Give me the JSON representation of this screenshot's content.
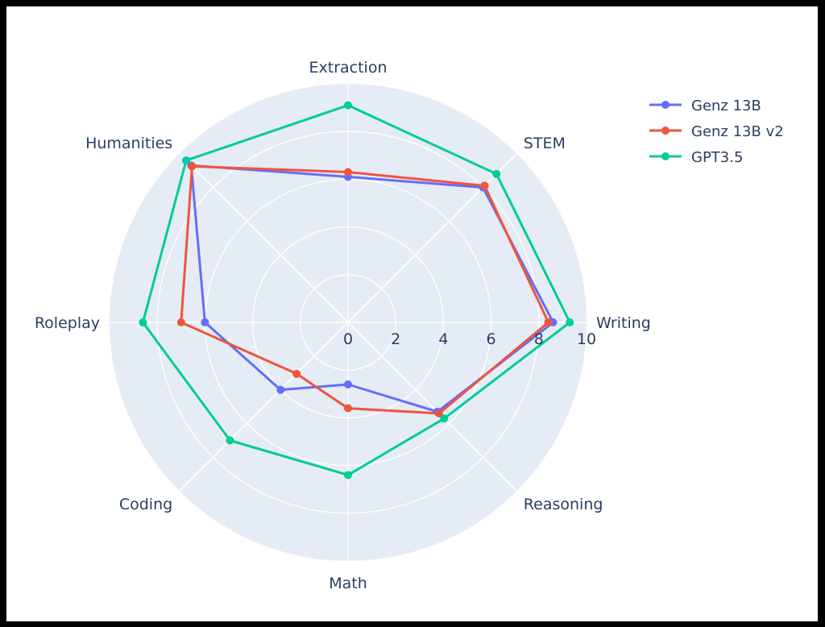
{
  "chart_data": {
    "type": "radar",
    "categories": [
      "Writing",
      "STEM",
      "Extraction",
      "Humanities",
      "Roleplay",
      "Coding",
      "Math",
      "Reasoning"
    ],
    "radial_range": [
      0,
      10
    ],
    "radial_ticks": [
      "0",
      "2",
      "4",
      "6",
      "8",
      "10"
    ],
    "grid": true,
    "legend_position": "top-right",
    "series": [
      {
        "name": "Genz 13B",
        "color": "#636efa",
        "values": [
          8.6,
          8.0,
          6.1,
          9.3,
          6.0,
          4.0,
          2.6,
          5.3
        ]
      },
      {
        "name": "Genz 13B v2",
        "color": "#ef553b",
        "values": [
          8.4,
          8.1,
          6.3,
          9.25,
          7.0,
          3.05,
          3.6,
          5.4
        ]
      },
      {
        "name": "GPT3.5",
        "color": "#00cc96",
        "values": [
          9.3,
          8.8,
          9.1,
          9.6,
          8.6,
          7.0,
          6.4,
          5.7
        ]
      }
    ]
  }
}
